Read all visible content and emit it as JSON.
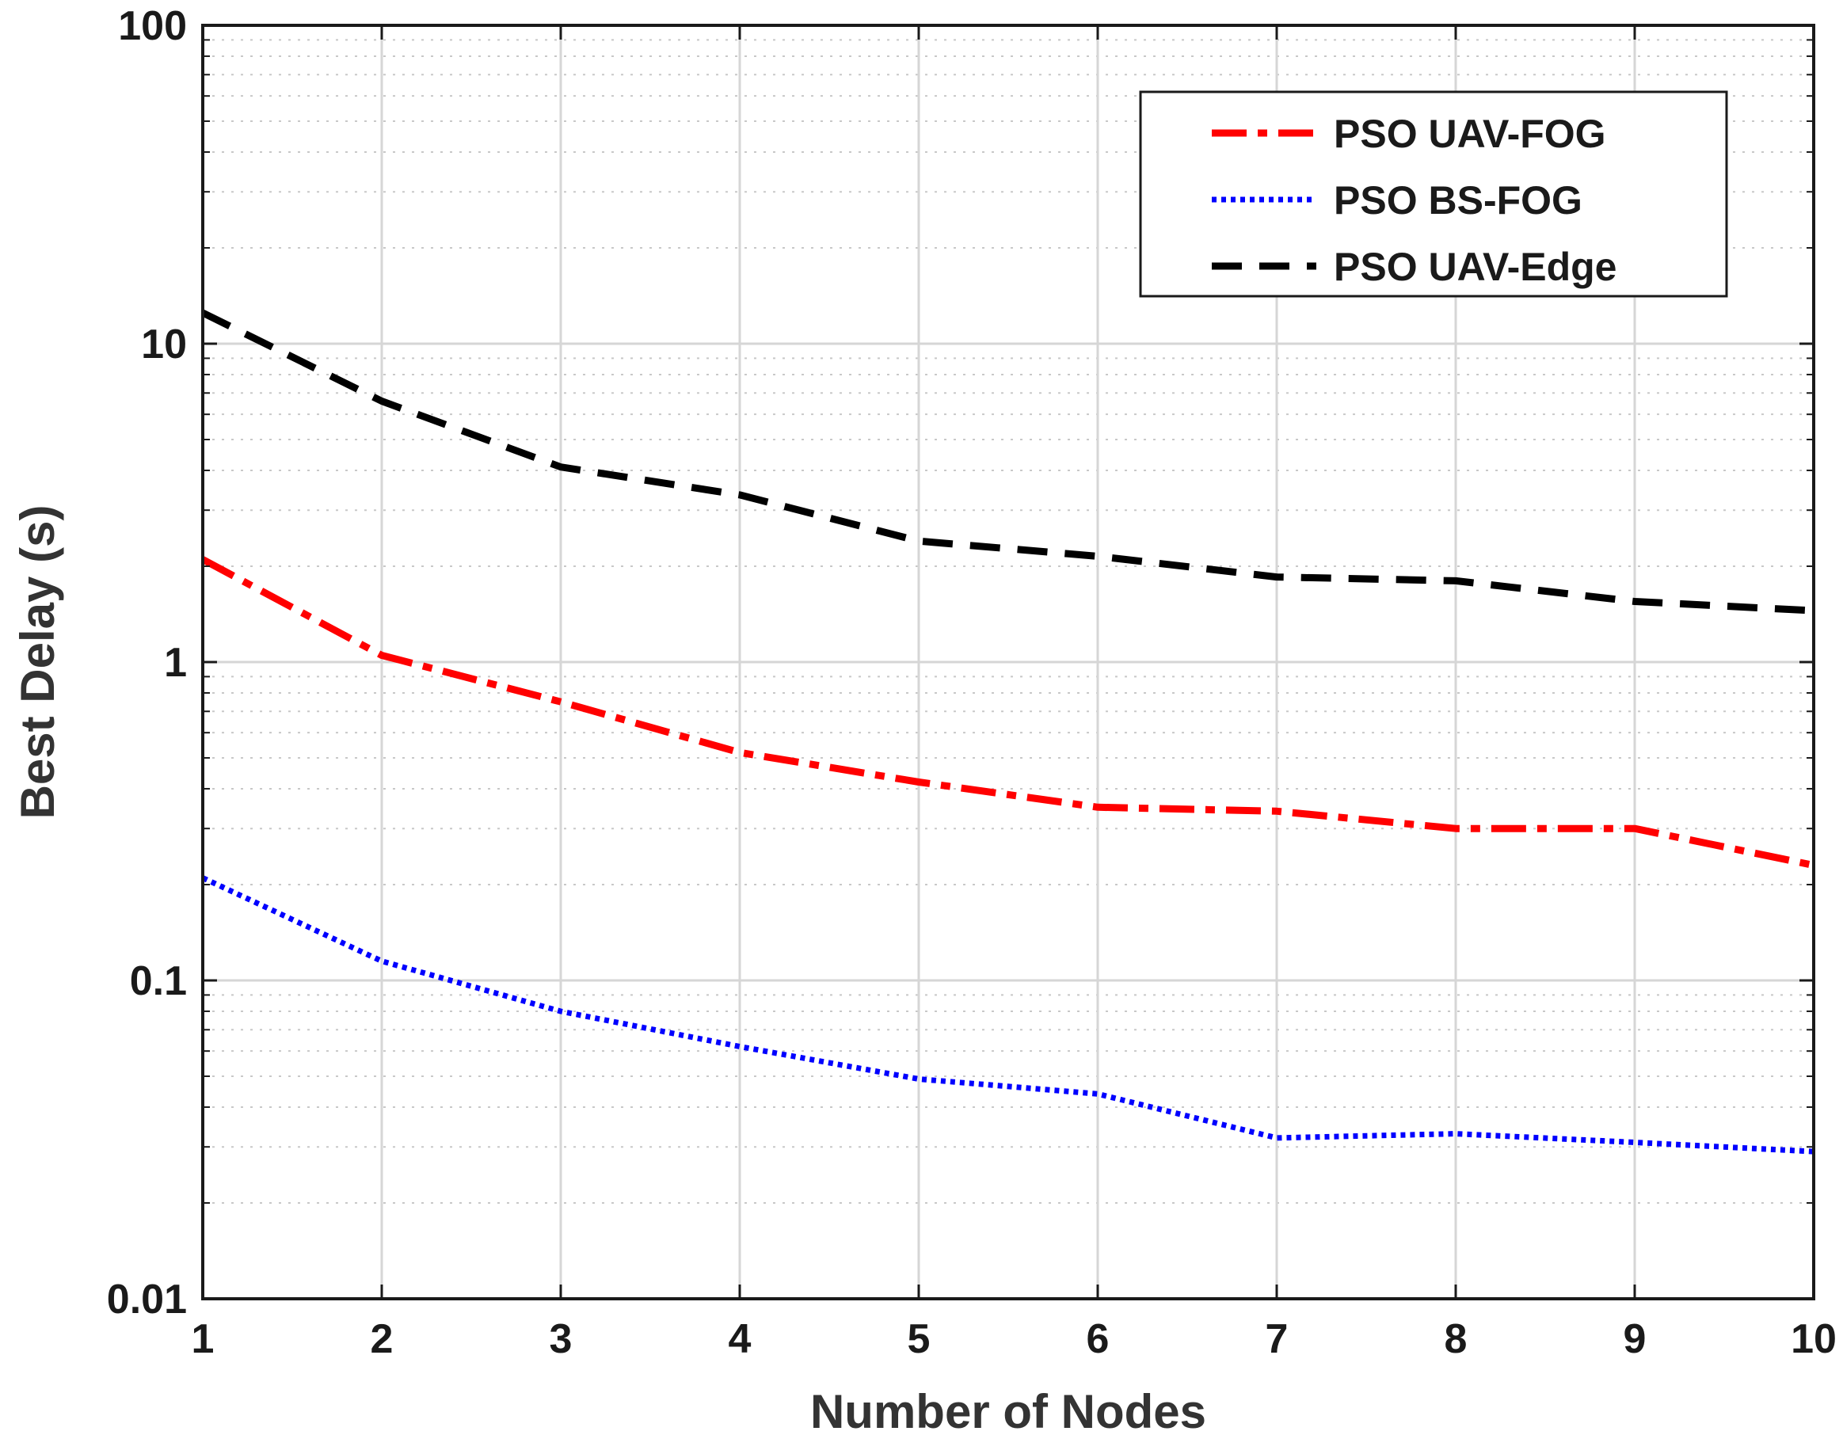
{
  "chart_data": {
    "type": "line",
    "title": "",
    "xlabel": "Number of Nodes",
    "ylabel": "Best Delay (s)",
    "yscale": "log",
    "xlim": [
      1,
      10
    ],
    "ylim": [
      0.01,
      100
    ],
    "grid": true,
    "legend_position": "top-right",
    "x": [
      1,
      2,
      3,
      4,
      5,
      6,
      7,
      8,
      9,
      10
    ],
    "x_ticks": [
      1,
      2,
      3,
      4,
      5,
      6,
      7,
      8,
      9,
      10
    ],
    "x_tick_labels": [
      "1",
      "2",
      "3",
      "4",
      "5",
      "6",
      "7",
      "8",
      "9",
      "10"
    ],
    "y_ticks": [
      0.01,
      0.1,
      1,
      10,
      100
    ],
    "y_tick_labels": [
      "0.01",
      "0.1",
      "1",
      "10",
      "100"
    ],
    "series": [
      {
        "name": "PSO UAV-FOG",
        "color": "#ff0000",
        "style": "dash-dot",
        "values": [
          2.1,
          1.05,
          0.75,
          0.52,
          0.42,
          0.35,
          0.34,
          0.3,
          0.3,
          0.23
        ]
      },
      {
        "name": "PSO BS-FOG",
        "color": "#0000ff",
        "style": "dotted",
        "values": [
          0.21,
          0.115,
          0.08,
          0.062,
          0.049,
          0.044,
          0.032,
          0.033,
          0.031,
          0.029
        ]
      },
      {
        "name": "PSO UAV-Edge",
        "color": "#000000",
        "style": "dashed",
        "values": [
          12.5,
          6.6,
          4.1,
          3.35,
          2.4,
          2.15,
          1.85,
          1.8,
          1.55,
          1.45
        ]
      }
    ]
  }
}
